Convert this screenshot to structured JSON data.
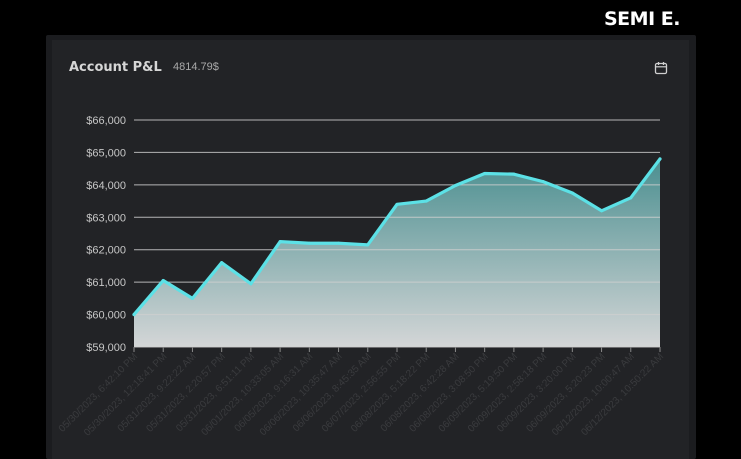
{
  "brand": "SEMI E.",
  "card": {
    "title": "Account P&L",
    "value": "4814.79$",
    "calendar_icon": "calendar-icon"
  },
  "colors": {
    "background": "#000000",
    "card": "#222326",
    "line": "#5ce1e6",
    "fill_top": "#4b8f90",
    "fill_bottom": "#d4d6d7",
    "grid": "#cfcfcf"
  },
  "chart_data": {
    "type": "area",
    "title": "",
    "xlabel": "",
    "ylabel": "",
    "ylim": [
      59000,
      66000
    ],
    "grid": true,
    "y_ticks": [
      "$59,000",
      "$60,000",
      "$61,000",
      "$62,000",
      "$63,000",
      "$64,000",
      "$65,000",
      "$66,000"
    ],
    "y_tick_values": [
      59000,
      60000,
      61000,
      62000,
      63000,
      64000,
      65000,
      66000
    ],
    "x": [
      "05/30/2023, 6:42:10 PM",
      "05/30/2023, 12:18:41 PM",
      "05/31/2023, 9:22:22 AM",
      "05/31/2023, 2:20:57 PM",
      "05/31/2023, 6:51:11 PM",
      "06/01/2023, 10:33:05 AM",
      "06/05/2023, 9:16:31 AM",
      "06/06/2023, 10:35:47 AM",
      "06/06/2023, 8:45:35 AM",
      "06/07/2023, 2:56:55 PM",
      "06/08/2023, 5:18:22 PM",
      "06/08/2023, 6:42:28 AM",
      "06/08/2023, 3:08:50 PM",
      "06/09/2023, 5:19:50 PM",
      "06/09/2023, 2:58:18 PM",
      "06/09/2023, 3:20:00 PM",
      "06/09/2023, 5:20:23 PM",
      "06/12/2023, 10:00:47 AM",
      "06/12/2023, 10:50:22 AM"
    ],
    "series": [
      {
        "values": [
          60000,
          61050,
          60500,
          61600,
          60950,
          62250,
          62200,
          62200,
          62150,
          63400,
          63500,
          63980,
          64350,
          64330,
          64100,
          63750,
          63200,
          63600,
          64800
        ]
      }
    ]
  }
}
